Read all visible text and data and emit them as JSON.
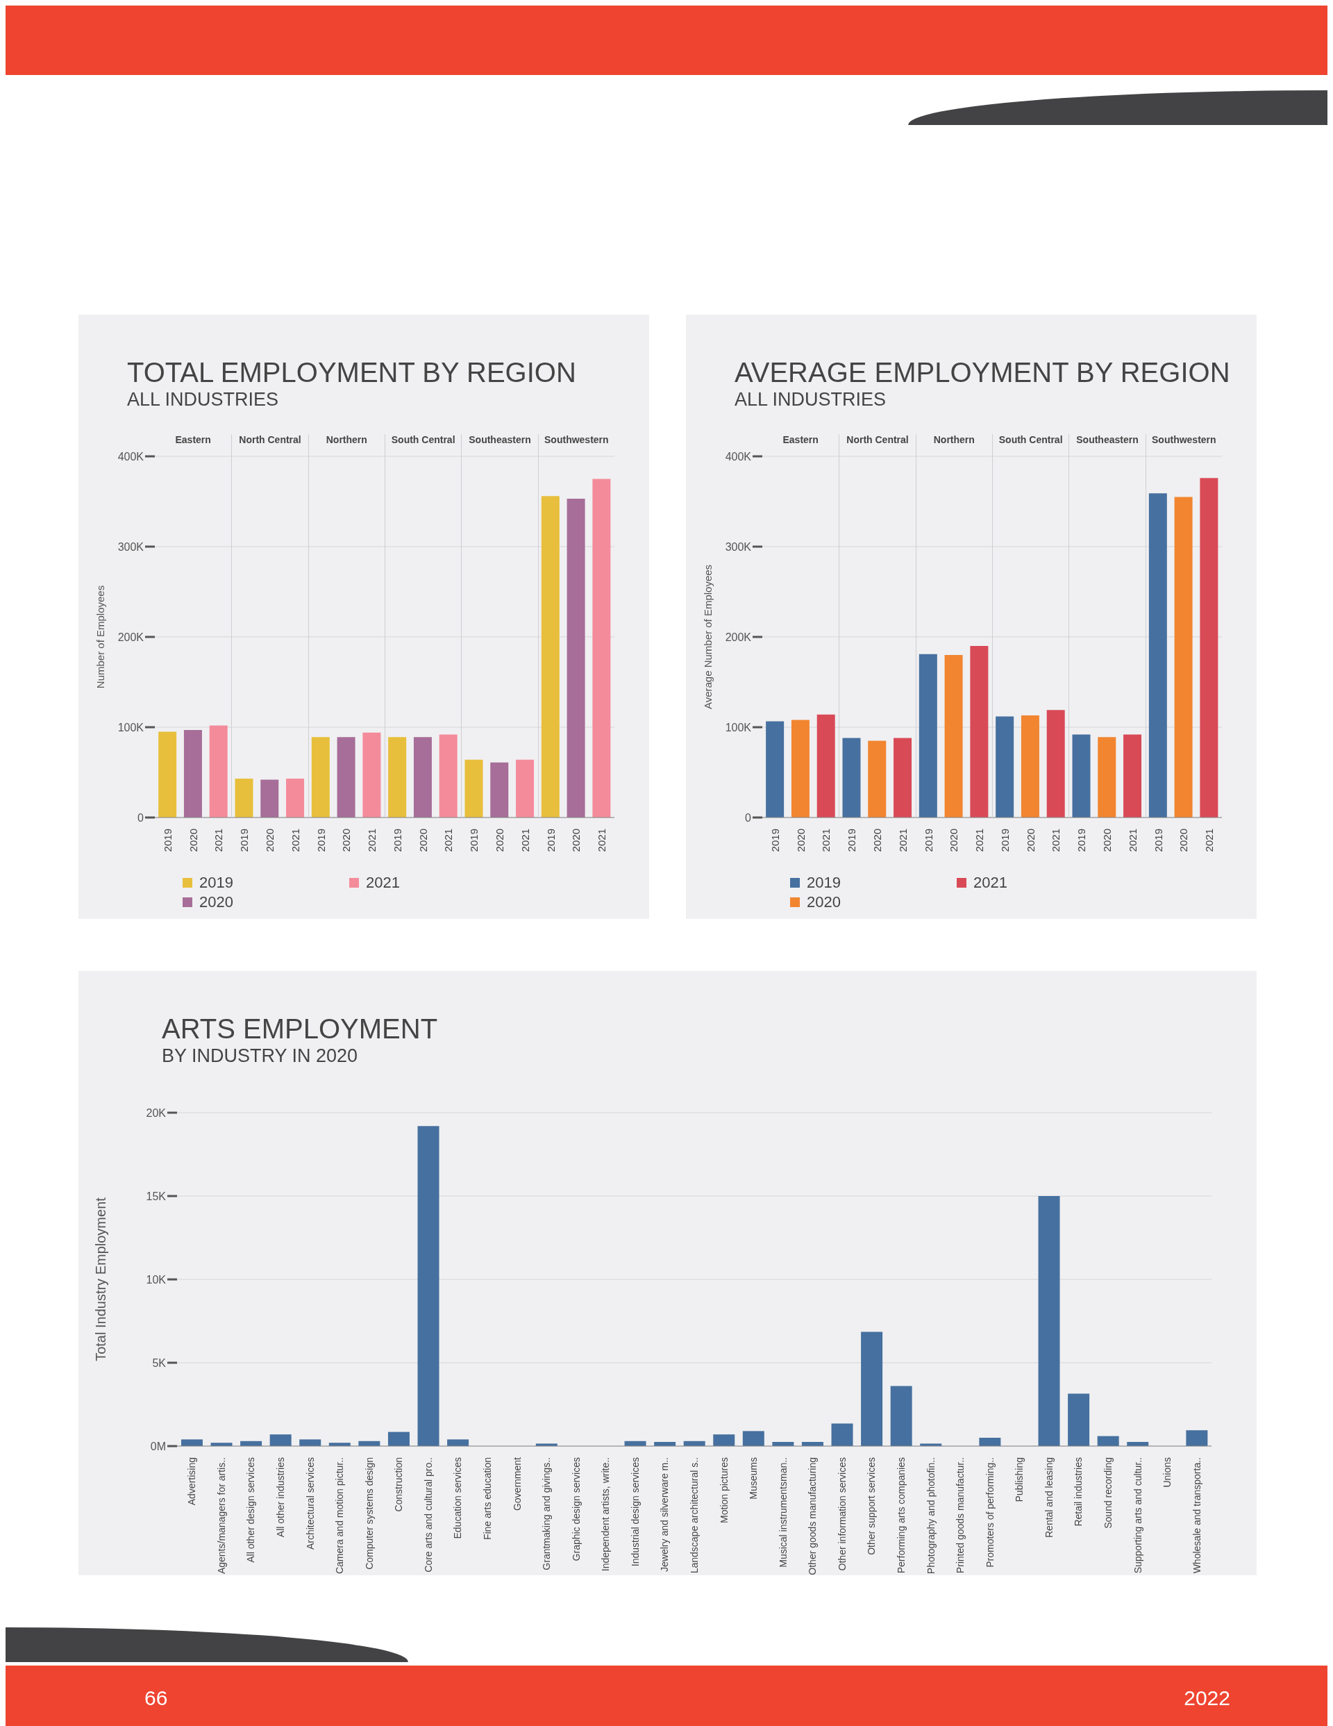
{
  "chart_data": [
    {
      "type": "bar",
      "title": "TOTAL EMPLOYMENT BY REGION",
      "subtitle": "ALL INDUSTRIES",
      "ylabel": "Number of Employees",
      "annotations": [
        "Eastern",
        "North Central",
        "Northern",
        "South Central",
        "Southeastern",
        "Southwestern"
      ],
      "categories": [
        "2019",
        "2020",
        "2021",
        "2019",
        "2020",
        "2021",
        "2019",
        "2020",
        "2021",
        "2019",
        "2020",
        "2021",
        "2019",
        "2020",
        "2021",
        "2019",
        "2020",
        "2021"
      ],
      "series": [
        {
          "name": "2019",
          "color": "#e8bf3c",
          "values": [
            95000,
            null,
            null,
            43000,
            null,
            null,
            89000,
            null,
            null,
            89000,
            null,
            null,
            64000,
            null,
            null,
            356000,
            null,
            null
          ]
        },
        {
          "name": "2020",
          "color": "#a66e98",
          "values": [
            null,
            97000,
            null,
            null,
            42000,
            null,
            null,
            89000,
            null,
            null,
            89000,
            null,
            null,
            61000,
            null,
            null,
            353000,
            null
          ]
        },
        {
          "name": "2021",
          "color": "#f48b9b",
          "values": [
            null,
            null,
            102000,
            null,
            null,
            43000,
            null,
            null,
            94000,
            null,
            null,
            92000,
            null,
            null,
            64000,
            null,
            null,
            375000
          ]
        }
      ],
      "ylim": [
        0,
        400000
      ],
      "yticks": [
        {
          "value": 0,
          "label": "0"
        },
        {
          "value": 100000,
          "label": "100K"
        },
        {
          "value": 200000,
          "label": "200K"
        },
        {
          "value": 300000,
          "label": "300K"
        },
        {
          "value": 400000,
          "label": "400K"
        }
      ],
      "grid": "y",
      "legend": "bottom"
    },
    {
      "type": "bar",
      "title": "AVERAGE EMPLOYMENT BY REGION",
      "subtitle": "ALL INDUSTRIES",
      "ylabel": "Average Number of Employees",
      "annotations": [
        "Eastern",
        "North Central",
        "Northern",
        "South Central",
        "Southeastern",
        "Southwestern"
      ],
      "categories": [
        "2019",
        "2020",
        "2021",
        "2019",
        "2020",
        "2021",
        "2019",
        "2020",
        "2021",
        "2019",
        "2020",
        "2021",
        "2019",
        "2020",
        "2021",
        "2019",
        "2020",
        "2021"
      ],
      "series": [
        {
          "name": "2019",
          "color": "#46709f",
          "values": [
            106500,
            null,
            null,
            88000,
            null,
            null,
            181000,
            null,
            null,
            112000,
            null,
            null,
            92000,
            null,
            null,
            359000,
            null,
            null
          ]
        },
        {
          "name": "2020",
          "color": "#f28530",
          "values": [
            null,
            108000,
            null,
            null,
            85000,
            null,
            null,
            180000,
            null,
            null,
            113000,
            null,
            null,
            89000,
            null,
            null,
            355000,
            null
          ]
        },
        {
          "name": "2021",
          "color": "#d94a57",
          "values": [
            null,
            null,
            114000,
            null,
            null,
            88000,
            null,
            null,
            190000,
            null,
            null,
            119000,
            null,
            null,
            92000,
            null,
            null,
            376000
          ]
        }
      ],
      "ylim": [
        0,
        400000
      ],
      "yticks": [
        {
          "value": 0,
          "label": "0"
        },
        {
          "value": 100000,
          "label": "100K"
        },
        {
          "value": 200000,
          "label": "200K"
        },
        {
          "value": 300000,
          "label": "300K"
        },
        {
          "value": 400000,
          "label": "400K"
        }
      ],
      "grid": "y",
      "legend": "bottom"
    },
    {
      "type": "bar",
      "title": "ARTS EMPLOYMENT",
      "subtitle": "BY INDUSTRY IN 2020",
      "ylabel": "Total Industry Employment",
      "annotations": [
        "66",
        "2022"
      ],
      "categories": [
        "Advertising",
        "Agents/managers for artis..",
        "All other design services",
        "All other industries",
        "Architectural services",
        "Camera and motion pictur..",
        "Computer systems design",
        "Construction",
        "Core arts and cultural pro..",
        "Education services",
        "Fine arts education",
        "Government",
        "Grantmaking and givings..",
        "Graphic design services",
        "Independent artists, write..",
        "Industrial design services",
        "Jewelry and silverware m..",
        "Landscape architectural s..",
        "Motion pictures",
        "Museums",
        "Musical instrumentsman..",
        "Other goods manufacturing",
        "Other information services",
        "Other support services",
        "Performing arts companies",
        "Photography and photofin..",
        "Printed goods manufactur..",
        "Promoters of performing..",
        "Publishing",
        "Rental and leasing",
        "Retail industries",
        "Sound recording",
        "Supporting arts and cultur..",
        "Unions",
        "Wholesale and transporta.."
      ],
      "values": [
        400,
        200,
        300,
        700,
        400,
        200,
        300,
        850,
        19200,
        400,
        0,
        0,
        150,
        0,
        0,
        300,
        250,
        300,
        700,
        900,
        250,
        250,
        1350,
        6850,
        3600,
        150,
        0,
        500,
        0,
        15000,
        3150,
        600,
        250,
        0,
        950
      ],
      "color": "#46709f",
      "ylim": [
        0,
        20000
      ],
      "yticks": [
        {
          "value": 0,
          "label": "0M"
        },
        {
          "value": 5000,
          "label": "5K"
        },
        {
          "value": 10000,
          "label": "10K"
        },
        {
          "value": 15000,
          "label": "15K"
        },
        {
          "value": 20000,
          "label": "20K"
        }
      ],
      "grid": "y"
    }
  ]
}
